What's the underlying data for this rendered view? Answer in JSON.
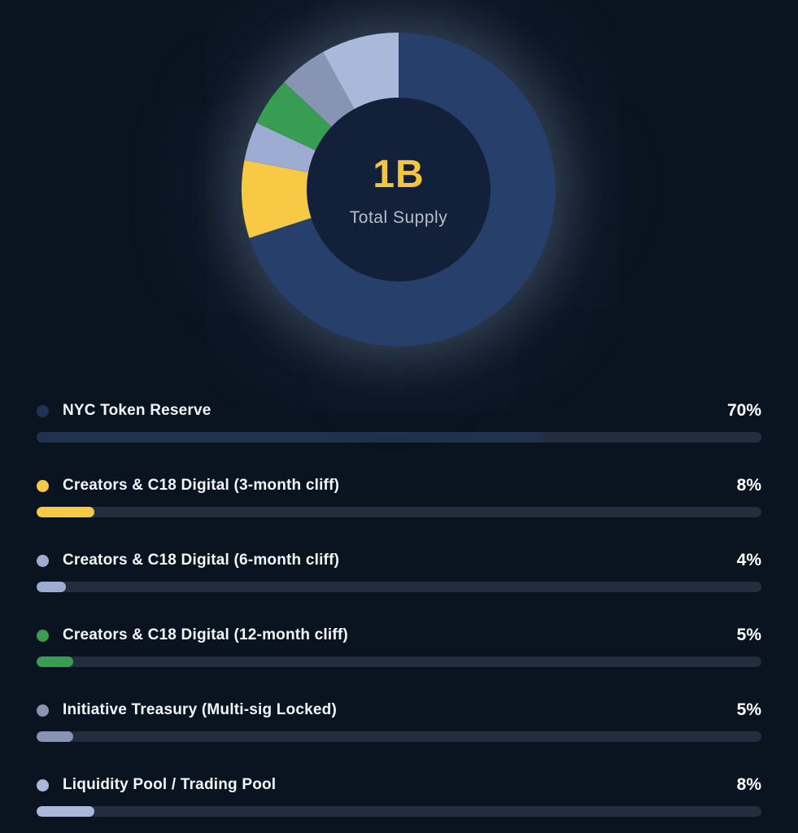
{
  "app": {
    "background_color": "#0a1421",
    "accent_color": "#f2c63e"
  },
  "chart_data": {
    "type": "pie",
    "donut": true,
    "start_angle_deg": 0,
    "direction": "clockwise",
    "legend_position": "bottom",
    "center_value": "1B",
    "center_label": "Total Supply",
    "inner_circle_color": "#12203a",
    "track_color": "#232d3d",
    "slices": [
      {
        "label": "NYC Token Reserve",
        "value": 70,
        "percent_label": "70%",
        "color": "#27406b",
        "dot_color": "#1e3457",
        "bar_color": "#203250"
      },
      {
        "label": "Creators & C18 Digital (3-month cliff)",
        "value": 8,
        "percent_label": "8%",
        "color": "#f7c944"
      },
      {
        "label": "Creators & C18 Digital (6-month cliff)",
        "value": 4,
        "percent_label": "4%",
        "color": "#9cacd2"
      },
      {
        "label": "Creators & C18 Digital (12-month cliff)",
        "value": 5,
        "percent_label": "5%",
        "color": "#389c53"
      },
      {
        "label": "Initiative Treasury (Multi-sig Locked)",
        "value": 5,
        "percent_label": "5%",
        "color": "#8794b3"
      },
      {
        "label": "Liquidity Pool / Trading Pool",
        "value": 8,
        "percent_label": "8%",
        "color": "#aab9d9"
      }
    ]
  }
}
